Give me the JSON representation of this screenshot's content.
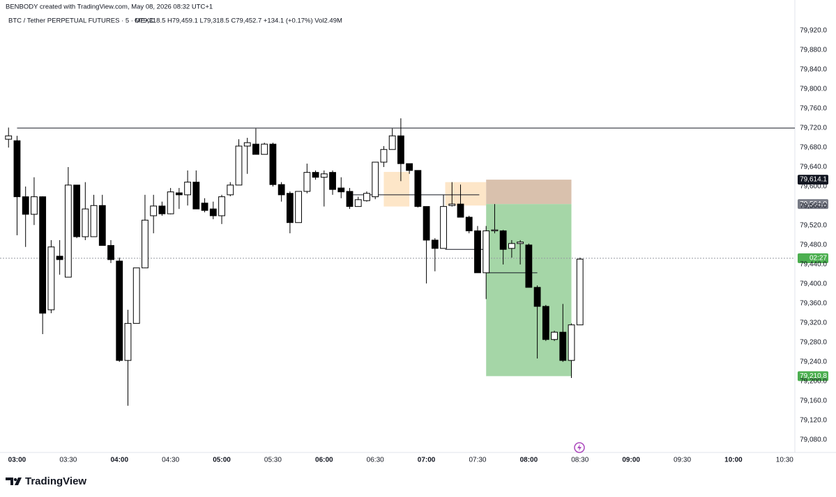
{
  "chart_data": {
    "type": "candlestick",
    "title": "BENBODY created with TradingView.com, May 08, 2026 08:32 UTC+1",
    "symbol": "BTC / Tether PERPETUAL FUTURES · 5 · MEXC",
    "quote": "O79,318.5 H79,459.1 L79,318.5 C79,452.7 +134.1 (+0.17%) Vol2.49M",
    "x": [
      175,
      180,
      185,
      190,
      195,
      200,
      205,
      210,
      215,
      220,
      225,
      230,
      235,
      240,
      245,
      250,
      255,
      260,
      265,
      270,
      275,
      280,
      285,
      290,
      295,
      300,
      305,
      310,
      315,
      320,
      325,
      330,
      335,
      340,
      345,
      350,
      355,
      360,
      365,
      370,
      375,
      380,
      385,
      390,
      395,
      400,
      405,
      410,
      415,
      420,
      425,
      430,
      435,
      440,
      445,
      450,
      455,
      460,
      465,
      470,
      475,
      480,
      485,
      490,
      495,
      500,
      505,
      510
    ],
    "open": [
      79697,
      79694,
      79579,
      79543,
      79579,
      79347,
      79457,
      79414,
      79603,
      79497,
      79497,
      79561,
      79479,
      79447,
      79243,
      79319,
      79433,
      79540,
      79560,
      79544,
      79587,
      79583,
      79609,
      79566,
      79554,
      79540,
      79583,
      79603,
      79683,
      79687,
      79666,
      79687,
      79604,
      79586,
      79526,
      79590,
      79629,
      79619,
      79629,
      79597,
      79590,
      79559,
      79571,
      79579,
      79650,
      79676,
      79704,
      79647,
      79633,
      79559,
      79490,
      79473,
      79561,
      79564,
      79537,
      79509,
      79423,
      79509,
      79509,
      79473,
      79483,
      79480,
      79393,
      79354,
      79286,
      79301,
      79243,
      79316
    ],
    "high": [
      79721,
      79704,
      79600,
      79619,
      79580,
      79490,
      79490,
      79640,
      79603,
      79609,
      79583,
      79583,
      79490,
      79454,
      79347,
      79433,
      79583,
      79583,
      79569,
      79597,
      79597,
      79633,
      79633,
      79576,
      79569,
      79583,
      79609,
      79697,
      79700,
      79719,
      79690,
      79690,
      79609,
      79590,
      79590,
      79647,
      79633,
      79633,
      79633,
      79619,
      79597,
      79579,
      79590,
      79650,
      79683,
      79719,
      79740,
      79647,
      79633,
      79559,
      79494,
      79583,
      79609,
      79604,
      79540,
      79519,
      79519,
      79564,
      79511,
      79490,
      79490,
      79483,
      79397,
      79357,
      79304,
      79359,
      79319,
      79454
    ],
    "low": [
      79680,
      79500,
      79476,
      79521,
      79297,
      79340,
      79419,
      79414,
      79494,
      79490,
      79497,
      79479,
      79443,
      79240,
      79150,
      79319,
      79433,
      79504,
      79540,
      79543,
      79554,
      79561,
      79554,
      79547,
      79533,
      79523,
      79580,
      79603,
      79626,
      79666,
      79666,
      79600,
      79569,
      79504,
      79526,
      79586,
      79614,
      79559,
      79583,
      79576,
      79554,
      79559,
      79569,
      79574,
      79640,
      79676,
      79611,
      79626,
      79557,
      79401,
      79426,
      79473,
      79559,
      79537,
      79504,
      79423,
      79369,
      79504,
      79440,
      79454,
      79440,
      79393,
      79247,
      79283,
      79283,
      79240,
      79207,
      79316
    ],
    "close": [
      79704,
      79579,
      79543,
      79579,
      79340,
      79476,
      79450,
      79603,
      79497,
      79554,
      79561,
      79479,
      79450,
      79243,
      79319,
      79433,
      79531,
      79560,
      79544,
      79589,
      79583,
      79609,
      79554,
      79551,
      79540,
      79579,
      79603,
      79683,
      79690,
      79666,
      79687,
      79604,
      79583,
      79526,
      79590,
      79629,
      79619,
      79626,
      79594,
      79589,
      79559,
      79573,
      79586,
      79650,
      79676,
      79704,
      79647,
      79633,
      79559,
      79490,
      79473,
      79559,
      79564,
      79537,
      79509,
      79423,
      79509,
      79511,
      79471,
      79483,
      79486,
      79393,
      79354,
      79286,
      79301,
      79243,
      79316,
      79451
    ],
    "up_color": "#ffffff",
    "down_color": "#000000",
    "xlim": [
      170,
      636
    ],
    "ylim": [
      79057,
      79940
    ],
    "xticks": [
      {
        "value": 180,
        "label": "03:00"
      },
      {
        "value": 210,
        "label": "03:30"
      },
      {
        "value": 240,
        "label": "04:00"
      },
      {
        "value": 270,
        "label": "04:30"
      },
      {
        "value": 300,
        "label": "05:00"
      },
      {
        "value": 330,
        "label": "05:30"
      },
      {
        "value": 360,
        "label": "06:00"
      },
      {
        "value": 390,
        "label": "06:30"
      },
      {
        "value": 420,
        "label": "07:00"
      },
      {
        "value": 450,
        "label": "07:30"
      },
      {
        "value": 480,
        "label": "08:00"
      },
      {
        "value": 510,
        "label": "08:30"
      },
      {
        "value": 540,
        "label": "09:00"
      },
      {
        "value": 570,
        "label": "09:30"
      },
      {
        "value": 600,
        "label": "10:00"
      },
      {
        "value": 630,
        "label": "10:30"
      }
    ],
    "yticks": [
      {
        "value": 79920,
        "label": "79,920.0"
      },
      {
        "value": 79880,
        "label": "79,880.0"
      },
      {
        "value": 79840,
        "label": "79,840.0"
      },
      {
        "value": 79800,
        "label": "79,800.0"
      },
      {
        "value": 79760,
        "label": "79,760.0"
      },
      {
        "value": 79720,
        "label": "79,720.0"
      },
      {
        "value": 79680,
        "label": "79,680.0"
      },
      {
        "value": 79640,
        "label": "79,640.0"
      },
      {
        "value": 79600,
        "label": "79,600.0"
      },
      {
        "value": 79560,
        "label": "79,560.0"
      },
      {
        "value": 79520,
        "label": "79,520.0"
      },
      {
        "value": 79480,
        "label": "79,480.0"
      },
      {
        "value": 79440,
        "label": "79,440.0"
      },
      {
        "value": 79400,
        "label": "79,400.0"
      },
      {
        "value": 79360,
        "label": "79,360.0"
      },
      {
        "value": 79320,
        "label": "79,320.0"
      },
      {
        "value": 79280,
        "label": "79,280.0"
      },
      {
        "value": 79240,
        "label": "79,240.0"
      },
      {
        "value": 79200,
        "label": "79,200.0"
      },
      {
        "value": 79160,
        "label": "79,160.0"
      },
      {
        "value": 79120,
        "label": "79,120.0"
      },
      {
        "value": 79080,
        "label": "79,080.0"
      }
    ],
    "grid": false,
    "level": {
      "value": 79720,
      "x": 180,
      "color": "#131722"
    },
    "lines": [
      {
        "value": 79583,
        "x": [
          377,
          451
        ],
        "color": "#131722"
      },
      {
        "value": 79471,
        "x": [
          431,
          455
        ],
        "color": "#131722"
      },
      {
        "value": 79423,
        "x": [
          455,
          485
        ],
        "color": "#131722"
      }
    ],
    "zones": [
      {
        "x": [
          395,
          410
        ],
        "top": 79630,
        "bottom": 79559,
        "color": "#fde6c8"
      },
      {
        "x": [
          431,
          455
        ],
        "top": 79609,
        "bottom": 79561,
        "color": "#fde6c8"
      }
    ],
    "position": {
      "x": [
        455,
        505
      ],
      "stop": 79614.1,
      "entry": 79564.0,
      "target": 79210.8,
      "stop_color": "#d9c1ad",
      "target_color": "#a5d6a7"
    },
    "last_price": 79452.7,
    "countdown": "02:27",
    "last_color": "#4caf50",
    "price_labels": [
      {
        "value": 79614.1,
        "label": "79,614.1",
        "color": "#131722"
      },
      {
        "value": 79564.0,
        "label": "79,564.0",
        "color": "#787b86"
      },
      {
        "value": 79210.8,
        "label": "79,210.8",
        "color": "#4caf50"
      }
    ]
  },
  "footer": {
    "brand": "TradingView"
  }
}
